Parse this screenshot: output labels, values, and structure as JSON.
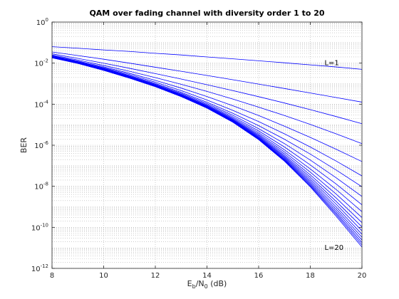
{
  "chart_data": {
    "type": "line",
    "title": "QAM over fading channel with diversity order 1 to 20",
    "xlabel": {
      "base": "E",
      "sub1": "b",
      "mid": "/N",
      "sub2": "0",
      "tail": " (dB)"
    },
    "ylabel": "BER",
    "xlim": [
      8,
      20
    ],
    "ylim": [
      1e-12,
      1
    ],
    "yscale": "log",
    "grid": "major-minor-dotted",
    "line_color": "#0000ff",
    "x_ticks": [
      "8",
      "10",
      "12",
      "14",
      "16",
      "18",
      "20"
    ],
    "y_ticks": [
      {
        "base": "10",
        "exp": "0"
      },
      {
        "base": "10",
        "exp": "-2"
      },
      {
        "base": "10",
        "exp": "-4"
      },
      {
        "base": "10",
        "exp": "-6"
      },
      {
        "base": "10",
        "exp": "-8"
      },
      {
        "base": "10",
        "exp": "-10"
      },
      {
        "base": "10",
        "exp": "-12"
      }
    ],
    "annotations": [
      {
        "text": "L=1",
        "x": 18.55,
        "y": 0.01
      },
      {
        "text": "L=20",
        "x": 18.55,
        "y": 1e-11
      }
    ],
    "x": [
      8,
      9,
      10,
      11,
      12,
      13,
      14,
      15,
      16,
      17,
      18,
      19,
      20
    ],
    "series": [
      {
        "values": [
          0.063,
          0.053,
          0.044,
          0.037,
          0.03,
          0.025,
          0.02,
          0.0162,
          0.013,
          0.0104,
          0.0082,
          0.0065,
          0.005
        ]
      },
      {
        "values": [
          0.035,
          0.0235,
          0.0155,
          0.01,
          0.0063,
          0.004,
          0.0025,
          0.00155,
          0.00095,
          0.00058,
          0.00035,
          0.00021,
          0.000126
        ]
      },
      {
        "values": [
          0.0285,
          0.017,
          0.0099,
          0.0056,
          0.0031,
          0.00168,
          0.00089,
          0.00046,
          0.000232,
          0.000114,
          5.4e-05,
          2.5e-05,
          1.12e-05
        ]
      },
      {
        "values": [
          0.025,
          0.0142,
          0.0077,
          0.004,
          0.00197,
          0.00093,
          0.00042,
          0.000178,
          7.2e-05,
          2.8e-05,
          1.03e-05,
          3.6e-06,
          1.2e-06
        ]
      },
      {
        "values": [
          0.0232,
          0.0128,
          0.0066,
          0.0032,
          0.00145,
          0.00061,
          0.000235,
          8.4e-05,
          2.8e-05,
          8.5e-06,
          2.4e-06,
          6.4e-07,
          1.6e-07
        ]
      },
      {
        "values": [
          0.0221,
          0.012,
          0.006,
          0.0028,
          0.00118,
          0.00046,
          0.000159,
          5e-05,
          1.42e-05,
          3.6e-06,
          8.2e-07,
          1.7e-07,
          3.2e-08
        ]
      },
      {
        "values": [
          0.0213,
          0.0115,
          0.0056,
          0.0025,
          0.00102,
          0.00038,
          0.000124,
          3.6e-05,
          9e-06,
          1.95e-06,
          3.7e-07,
          6.2e-08,
          9.5e-09
        ]
      },
      {
        "values": [
          0.0207,
          0.0111,
          0.0053,
          0.00235,
          0.00094,
          0.00034,
          0.000107,
          2.9e-05,
          6.4e-06,
          1.2e-06,
          1.9e-07,
          2.6e-08,
          3.2e-09
        ]
      },
      {
        "values": [
          0.0202,
          0.0108,
          0.0051,
          0.00223,
          0.00088,
          0.00031,
          9.5e-05,
          2.45e-05,
          5e-06,
          8.2e-07,
          1.1e-07,
          1.3e-08,
          1.25e-09
        ]
      },
      {
        "values": [
          0.0198,
          0.0106,
          0.00497,
          0.00214,
          0.00084,
          0.00029,
          8.7e-05,
          2.15e-05,
          4.1e-06,
          6e-07,
          7e-08,
          7e-09,
          5.8e-10
        ]
      },
      {
        "values": [
          0.0195,
          0.0104,
          0.00487,
          0.00208,
          0.00081,
          0.00028,
          8.2e-05,
          1.95e-05,
          3.5e-06,
          4.7e-07,
          4.9e-08,
          4.2e-09,
          3e-10
        ]
      },
      {
        "values": [
          0.0192,
          0.0103,
          0.00479,
          0.00203,
          0.00079,
          0.00027,
          7.8e-05,
          1.8e-05,
          3.1e-06,
          3.8e-07,
          3.6e-08,
          2.7e-09,
          1.7e-10
        ]
      },
      {
        "values": [
          0.019,
          0.0101,
          0.00472,
          0.00199,
          0.00077,
          0.00026,
          7.5e-05,
          1.7e-05,
          2.8e-06,
          3.2e-07,
          2.8e-08,
          1.85e-09,
          1.05e-10
        ]
      },
      {
        "values": [
          0.0188,
          0.01,
          0.00466,
          0.00196,
          0.00076,
          0.000255,
          7.2e-05,
          1.6e-05,
          2.55e-06,
          2.8e-07,
          2.25e-08,
          1.35e-09,
          6.8e-11
        ]
      },
      {
        "values": [
          0.0186,
          0.0099,
          0.00461,
          0.00193,
          0.00075,
          0.00025,
          7e-05,
          1.53e-05,
          2.38e-06,
          2.5e-07,
          1.85e-08,
          1e-09,
          4.6e-11
        ]
      },
      {
        "values": [
          0.0185,
          0.00985,
          0.00457,
          0.00191,
          0.00074,
          0.000246,
          6.85e-05,
          1.47e-05,
          2.23e-06,
          2.25e-07,
          1.56e-08,
          7.8e-10,
          3.3e-11
        ]
      },
      {
        "values": [
          0.0184,
          0.0098,
          0.00453,
          0.00189,
          0.00073,
          0.000242,
          6.7e-05,
          1.42e-05,
          2.11e-06,
          2.05e-07,
          1.35e-08,
          6.2e-10,
          2.4e-11
        ]
      },
      {
        "values": [
          0.0183,
          0.00975,
          0.0045,
          0.00187,
          0.000722,
          0.000239,
          6.6e-05,
          1.38e-05,
          2.01e-06,
          1.9e-07,
          1.18e-08,
          5e-10,
          1.8e-11
        ]
      },
      {
        "values": [
          0.0182,
          0.0097,
          0.00447,
          0.00186,
          0.000716,
          0.000236,
          6.5e-05,
          1.35e-05,
          1.93e-06,
          1.77e-07,
          1.05e-08,
          4.2e-10,
          1.4e-11
        ]
      },
      {
        "values": [
          0.0181,
          0.00966,
          0.00445,
          0.00185,
          0.00071,
          0.000234,
          6.4e-05,
          1.32e-05,
          1.86e-06,
          1.66e-07,
          9.4e-09,
          3.5e-10,
          1.1e-11
        ]
      }
    ]
  }
}
